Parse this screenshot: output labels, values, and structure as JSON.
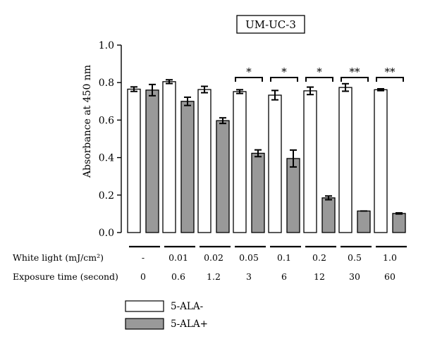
{
  "chart_data": {
    "type": "bar",
    "title": "UM-UC-3",
    "ylabel": "Absorbance at 450 nm",
    "ylim": [
      0,
      1.0
    ],
    "yticks": [
      "0.0",
      "0.2",
      "0.4",
      "0.6",
      "0.8",
      "1.0"
    ],
    "grid": false,
    "legend_position": "bottom-left",
    "row_labels": [
      "White light (mJ/cm²)",
      "Exposure time (second)"
    ],
    "categories": [
      "-",
      "0.01",
      "0.02",
      "0.05",
      "0.1",
      "0.2",
      "0.5",
      "1.0"
    ],
    "exposure_times": [
      "0",
      "0.6",
      "1.2",
      "3",
      "6",
      "12",
      "30",
      "60"
    ],
    "series": [
      {
        "name": "5-ALA-",
        "color": "#ffffff",
        "values": [
          0.765,
          0.805,
          0.763,
          0.752,
          0.733,
          0.756,
          0.774,
          0.762
        ],
        "errors": [
          0.012,
          0.01,
          0.017,
          0.01,
          0.025,
          0.02,
          0.02,
          0.005
        ]
      },
      {
        "name": "5-ALA+",
        "color": "#999999",
        "values": [
          0.76,
          0.7,
          0.597,
          0.423,
          0.395,
          0.185,
          0.115,
          0.102
        ],
        "errors": [
          0.03,
          0.022,
          0.015,
          0.018,
          0.045,
          0.01,
          0.0,
          0.003
        ]
      }
    ],
    "annotations": [
      "",
      "",
      "",
      "*",
      "*",
      "*",
      "**",
      "**"
    ]
  }
}
